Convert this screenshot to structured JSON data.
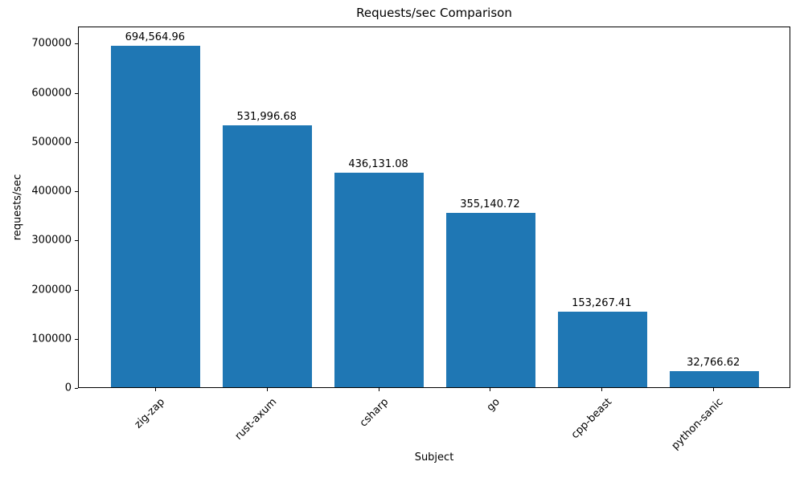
{
  "chart_data": {
    "type": "bar",
    "title": "Requests/sec Comparison",
    "xlabel": "Subject",
    "ylabel": "requests/sec",
    "categories": [
      "zig-zap",
      "rust-axum",
      "csharp",
      "go",
      "cpp-beast",
      "python-sanic"
    ],
    "values": [
      694564.96,
      531996.68,
      436131.08,
      355140.72,
      153267.41,
      32766.62
    ],
    "bar_value_labels": [
      "694,564.96",
      "531,996.68",
      "436,131.08",
      "355,140.72",
      "153,267.41",
      "32,766.62"
    ],
    "yticks": [
      0,
      100000,
      200000,
      300000,
      400000,
      500000,
      600000,
      700000
    ],
    "ytick_labels": [
      "0",
      "100000",
      "200000",
      "300000",
      "400000",
      "500000",
      "600000",
      "700000"
    ],
    "ylim": [
      0,
      735000
    ],
    "bar_color": "#1f77b4",
    "axis_color": "#000000",
    "grid": false,
    "legend": "none",
    "x_tick_rotation_deg": 45
  }
}
